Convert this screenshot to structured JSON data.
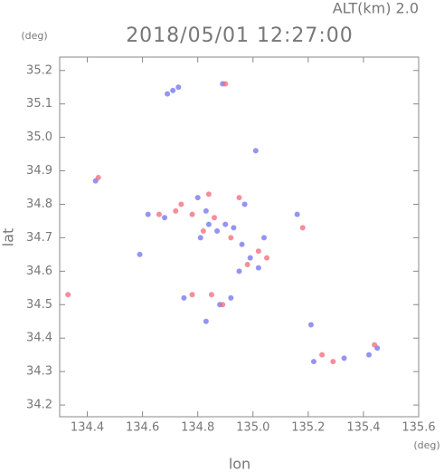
{
  "chart_data": {
    "type": "scatter",
    "title": "2018/05/01 12:27:00",
    "subtitle": "ALT(km) 2.0",
    "y_unit": "(deg)",
    "x_unit": "(deg)",
    "x_label": "lon",
    "y_label": "lat",
    "xlim": [
      134.3,
      135.6
    ],
    "ylim": [
      34.165,
      35.24
    ],
    "xticks": [
      134.4,
      134.6,
      134.8,
      {
        "value": 135,
        "label": "135.0"
      },
      135.2,
      135.4,
      135.6
    ],
    "yticks": [
      34.2,
      34.3,
      34.4,
      34.5,
      34.6,
      34.7,
      34.8,
      34.9,
      {
        "value": 35,
        "label": "35.0"
      },
      35.1,
      35.2
    ],
    "series": [
      {
        "color": "#7070f0",
        "x": [
          134.43,
          134.59,
          134.69,
          134.71,
          134.73,
          134.89,
          135.01,
          134.62,
          134.68,
          134.8,
          134.83,
          134.81,
          134.84,
          134.87,
          134.9,
          134.93,
          134.96,
          134.99,
          135.02,
          134.95,
          135.04,
          134.92,
          134.88,
          134.83,
          135.16,
          135.21,
          135.22,
          135.33,
          135.42,
          135.45,
          134.75,
          134.97
        ],
        "y": [
          34.87,
          34.65,
          35.13,
          35.14,
          35.15,
          35.16,
          34.96,
          34.77,
          34.76,
          34.82,
          34.78,
          34.7,
          34.74,
          34.72,
          34.74,
          34.73,
          34.68,
          34.64,
          34.61,
          34.6,
          34.7,
          34.52,
          34.5,
          34.45,
          34.77,
          34.44,
          34.33,
          34.34,
          34.35,
          34.37,
          34.52,
          34.8
        ]
      },
      {
        "color": "#f06a78",
        "x": [
          134.33,
          134.44,
          134.9,
          134.66,
          134.72,
          134.78,
          134.84,
          134.86,
          134.82,
          134.92,
          135.02,
          135.05,
          134.98,
          134.89,
          134.85,
          134.78,
          135.18,
          135.25,
          135.29,
          135.44,
          134.95,
          134.74
        ],
        "y": [
          34.53,
          34.88,
          35.16,
          34.77,
          34.78,
          34.77,
          34.83,
          34.76,
          34.72,
          34.7,
          34.66,
          34.64,
          34.62,
          34.5,
          34.53,
          34.53,
          34.73,
          34.35,
          34.33,
          34.38,
          34.82,
          34.8
        ]
      }
    ]
  }
}
